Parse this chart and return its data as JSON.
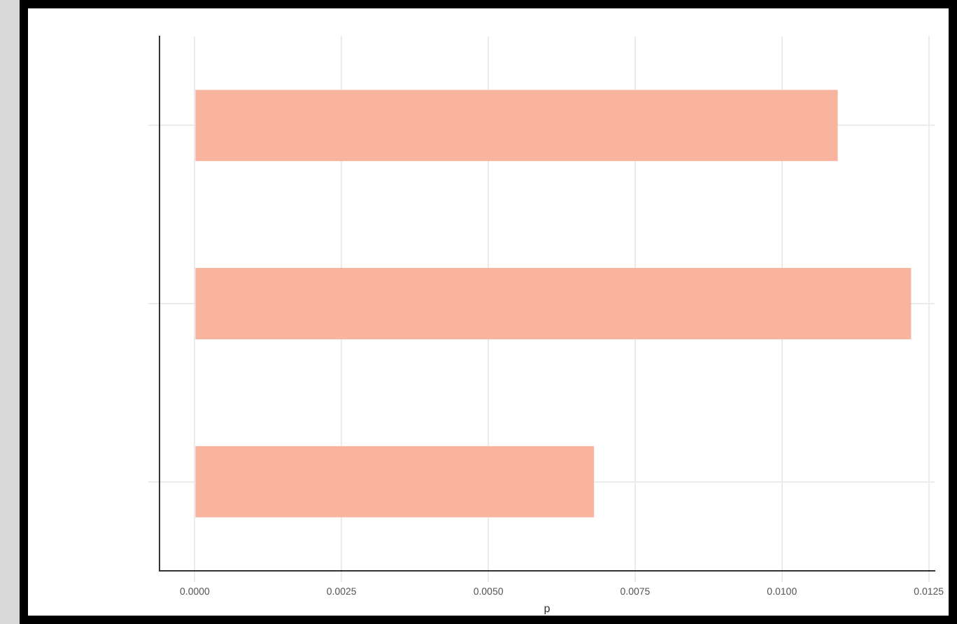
{
  "chart_data": {
    "type": "bar",
    "orientation": "horizontal",
    "xlabel": "p",
    "categories": [
      null,
      null,
      null
    ],
    "values": [
      0.01095,
      0.0122,
      0.0068
    ],
    "color": "#f9b4a0",
    "xlim": [
      -0.0006,
      0.0126
    ],
    "xticks": [
      {
        "value": 0,
        "label": "0.0000"
      },
      {
        "value": 0.0025,
        "label": "0.0025"
      },
      {
        "value": 0.005,
        "label": "0.0050"
      },
      {
        "value": 0.0075,
        "label": "0.0075"
      },
      {
        "value": 0.01,
        "label": "0.0100"
      },
      {
        "value": 0.0125,
        "label": "0.0125"
      }
    ],
    "grid": true
  }
}
